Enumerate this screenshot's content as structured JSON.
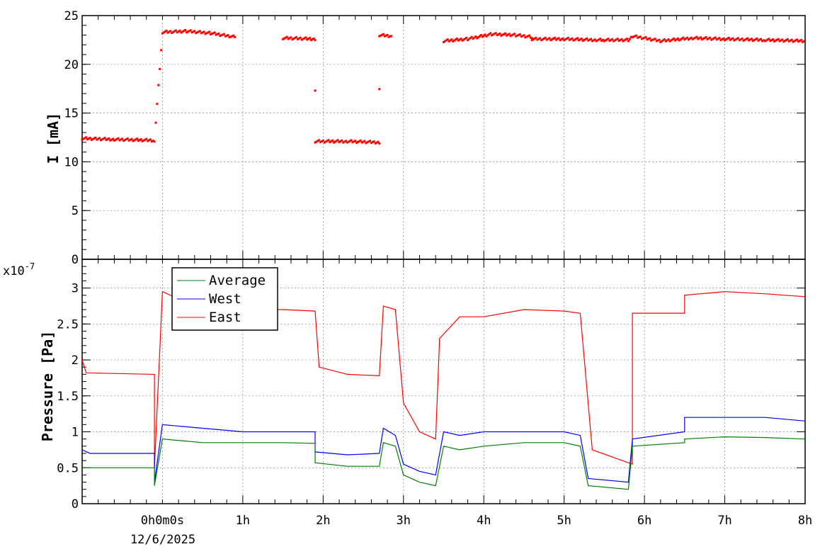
{
  "colors": {
    "current": "#ff0000",
    "average": "#008000",
    "west": "#0000ff",
    "east": "#ff0000",
    "grid": "#808080"
  },
  "chart_data": [
    {
      "type": "scatter",
      "ylabel": "I [mA]",
      "ylim": [
        0,
        25
      ],
      "yticks": [
        0,
        5,
        10,
        15,
        20,
        25
      ],
      "xlim": [
        -1,
        8
      ],
      "grid": true,
      "series": [
        {
          "values_x": [
            -1.0,
            -0.6,
            -0.1,
            0.0,
            0.3,
            0.6,
            0.9,
            1.5,
            1.9,
            1.9,
            2.3,
            2.7,
            2.7,
            2.85,
            3.5,
            3.8,
            4.1,
            4.4,
            4.6,
            4.6,
            5.0,
            5.4,
            5.5,
            5.8,
            5.85,
            6.2,
            6.6,
            7.0,
            7.5,
            8.0
          ],
          "values_y": [
            12.4,
            12.3,
            12.2,
            23.3,
            23.4,
            23.2,
            22.8,
            22.7,
            22.6,
            12.1,
            12.1,
            12.0,
            23.0,
            22.9,
            22.4,
            22.6,
            23.1,
            23.0,
            22.8,
            22.6,
            22.6,
            22.5,
            22.5,
            22.5,
            22.9,
            22.4,
            22.7,
            22.6,
            22.5,
            22.4
          ]
        }
      ]
    },
    {
      "type": "line",
      "ylabel": "Pressure [Pa]",
      "yexponent": "x10-7",
      "yscale_exp": "-7",
      "ylim": [
        0,
        3.4
      ],
      "yticks": [
        0,
        0.5,
        1,
        1.5,
        2,
        2.5,
        3
      ],
      "ytick_labels": [
        "0",
        "0.5",
        "1",
        "1.5",
        "2",
        "2.5",
        "3"
      ],
      "xlim": [
        -1,
        8
      ],
      "xticks": [
        0,
        1,
        2,
        3,
        4,
        5,
        6,
        7,
        8
      ],
      "xtick_labels": [
        "0h0m0s",
        "1h",
        "2h",
        "3h",
        "4h",
        "5h",
        "6h",
        "7h",
        "8h"
      ],
      "xdate": "12/6/2025",
      "grid": true,
      "legend": {
        "position": "top-left",
        "entries": [
          "Average",
          "West",
          "East"
        ]
      },
      "series": [
        {
          "name": "Average",
          "x": [
            -1.0,
            -0.9,
            -0.1,
            -0.1,
            0.0,
            0.5,
            1.0,
            1.5,
            1.9,
            1.9,
            2.3,
            2.7,
            2.75,
            2.9,
            3.0,
            3.2,
            3.4,
            3.5,
            3.7,
            4.0,
            4.5,
            5.0,
            5.2,
            5.3,
            5.8,
            5.85,
            6.5,
            6.5,
            7.0,
            7.5,
            8.0
          ],
          "y": [
            0.5,
            0.5,
            0.5,
            0.25,
            0.9,
            0.85,
            0.85,
            0.85,
            0.84,
            0.57,
            0.52,
            0.52,
            0.85,
            0.8,
            0.4,
            0.3,
            0.25,
            0.8,
            0.75,
            0.8,
            0.85,
            0.85,
            0.8,
            0.25,
            0.2,
            0.8,
            0.85,
            0.9,
            0.93,
            0.92,
            0.9
          ]
        },
        {
          "name": "West",
          "x": [
            -1.0,
            -0.9,
            -0.1,
            -0.1,
            0.0,
            0.5,
            1.0,
            1.5,
            1.9,
            1.9,
            2.3,
            2.7,
            2.75,
            2.9,
            3.0,
            3.2,
            3.4,
            3.5,
            3.7,
            4.0,
            4.5,
            5.0,
            5.2,
            5.3,
            5.8,
            5.85,
            6.5,
            6.5,
            7.0,
            7.5,
            8.0
          ],
          "y": [
            0.75,
            0.7,
            0.7,
            0.3,
            1.1,
            1.05,
            1.0,
            1.0,
            1.0,
            0.72,
            0.68,
            0.7,
            1.05,
            0.95,
            0.55,
            0.45,
            0.4,
            1.0,
            0.95,
            1.0,
            1.0,
            1.0,
            0.95,
            0.35,
            0.3,
            0.9,
            1.0,
            1.2,
            1.2,
            1.2,
            1.15
          ]
        },
        {
          "name": "East",
          "x": [
            -1.0,
            -0.95,
            -0.1,
            -0.1,
            0.0,
            0.5,
            1.0,
            1.5,
            1.9,
            1.95,
            2.3,
            2.7,
            2.75,
            2.9,
            3.0,
            3.2,
            3.4,
            3.45,
            3.7,
            4.0,
            4.5,
            5.0,
            5.2,
            5.35,
            5.85,
            5.85,
            6.5,
            6.5,
            7.0,
            7.5,
            8.0
          ],
          "y": [
            2.0,
            1.82,
            1.8,
            0.5,
            2.95,
            2.7,
            2.7,
            2.7,
            2.68,
            1.9,
            1.8,
            1.78,
            2.75,
            2.7,
            1.4,
            1.0,
            0.9,
            2.3,
            2.6,
            2.6,
            2.7,
            2.68,
            2.65,
            0.75,
            0.55,
            2.65,
            2.65,
            2.9,
            2.95,
            2.92,
            2.88
          ]
        }
      ]
    }
  ]
}
